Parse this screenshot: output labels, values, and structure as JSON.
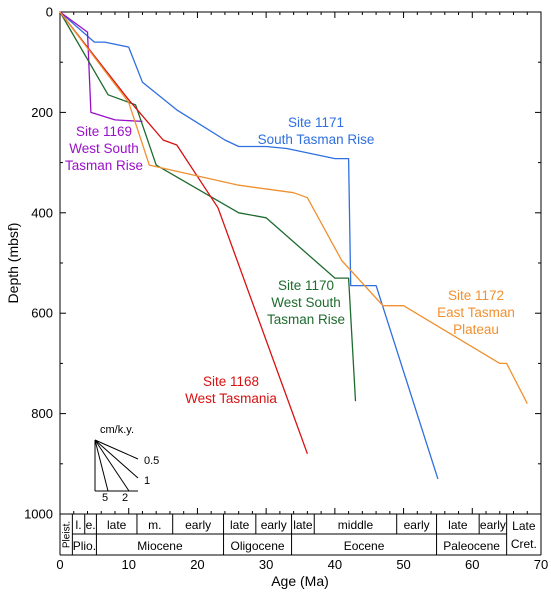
{
  "chart_data": {
    "type": "line",
    "xlabel": "Age (Ma)",
    "ylabel": "Depth (mbsf)",
    "xlim": [
      0,
      70
    ],
    "ylim": [
      0,
      1000
    ],
    "y_inverted": true,
    "xticks": [
      0,
      10,
      20,
      30,
      40,
      50,
      60,
      70
    ],
    "yticks": [
      0,
      200,
      400,
      600,
      800,
      1000
    ],
    "grid": false,
    "series": [
      {
        "name": "Site 1171 South Tasman Rise",
        "label_lines": [
          "Site 1171",
          "South Tasman Rise"
        ],
        "color": "#2f6fe0",
        "x": [
          0,
          5,
          6.5,
          10,
          12,
          17,
          24,
          26,
          30,
          33,
          40,
          42,
          42.3,
          46,
          55
        ],
        "y": [
          0,
          60,
          60,
          70,
          140,
          195,
          255,
          268,
          268,
          272,
          292,
          292,
          545,
          545,
          930
        ]
      },
      {
        "name": "Site 1169 West South Tasman Rise",
        "label_lines": [
          "Site 1169",
          "West South",
          "Tasman Rise"
        ],
        "color": "#9a10c8",
        "x": [
          0,
          4,
          4.5,
          8,
          12
        ],
        "y": [
          0,
          40,
          200,
          215,
          218
        ]
      },
      {
        "name": "Site 1170 West South Tasman Rise",
        "label_lines": [
          "Site 1170",
          "West South",
          "Tasman Rise"
        ],
        "color": "#1e6b2e",
        "x": [
          0,
          7,
          11,
          14,
          26,
          30,
          40,
          42,
          43
        ],
        "y": [
          0,
          165,
          185,
          305,
          400,
          410,
          530,
          530,
          775
        ]
      },
      {
        "name": "Site 1168 West Tasmania",
        "label_lines": [
          "Site 1168",
          "West Tasmania"
        ],
        "color": "#d81010",
        "x": [
          0,
          10,
          15,
          17,
          23,
          36
        ],
        "y": [
          0,
          175,
          255,
          265,
          390,
          880
        ]
      },
      {
        "name": "Site 1172 East Tasman Plateau",
        "label_lines": [
          "Site 1172",
          "East Tasman",
          "Plateau"
        ],
        "color": "#f09030",
        "x": [
          0,
          10,
          13,
          26,
          34,
          36,
          41,
          47,
          50,
          64,
          65,
          68
        ],
        "y": [
          0,
          180,
          305,
          345,
          360,
          370,
          495,
          585,
          585,
          700,
          700,
          780
        ]
      }
    ],
    "rate_legend": {
      "title": "cm/k.y.",
      "labels": [
        "0.5",
        "1",
        "2",
        "5"
      ],
      "rates_cm_per_kyr": [
        0.5,
        1,
        2,
        5
      ]
    },
    "timescale": {
      "epochs": [
        {
          "label": "Pleist.",
          "from": 0,
          "to": 1.8
        },
        {
          "label": "Plio.",
          "from": 1.8,
          "to": 5.3
        },
        {
          "label": "Miocene",
          "from": 5.3,
          "to": 23.8
        },
        {
          "label": "Oligocene",
          "from": 23.8,
          "to": 33.7
        },
        {
          "label": "Eocene",
          "from": 33.7,
          "to": 54.8
        },
        {
          "label": "Paleocene",
          "from": 54.8,
          "to": 65
        },
        {
          "label": "Late Cret.",
          "from": 65,
          "to": 70
        }
      ],
      "subdivisions": [
        {
          "label": "l.",
          "from": 1.8,
          "to": 3.6
        },
        {
          "label": "e.",
          "from": 3.6,
          "to": 5.3
        },
        {
          "label": "late",
          "from": 5.3,
          "to": 11.2
        },
        {
          "label": "m.",
          "from": 11.2,
          "to": 16.4
        },
        {
          "label": "early",
          "from": 16.4,
          "to": 23.8
        },
        {
          "label": "late",
          "from": 23.8,
          "to": 28.5
        },
        {
          "label": "early",
          "from": 28.5,
          "to": 33.7
        },
        {
          "label": "late",
          "from": 33.7,
          "to": 37
        },
        {
          "label": "middle",
          "from": 37,
          "to": 49
        },
        {
          "label": "early",
          "from": 49,
          "to": 54.8
        },
        {
          "label": "late",
          "from": 54.8,
          "to": 61
        },
        {
          "label": "early",
          "from": 61,
          "to": 65
        }
      ]
    }
  }
}
